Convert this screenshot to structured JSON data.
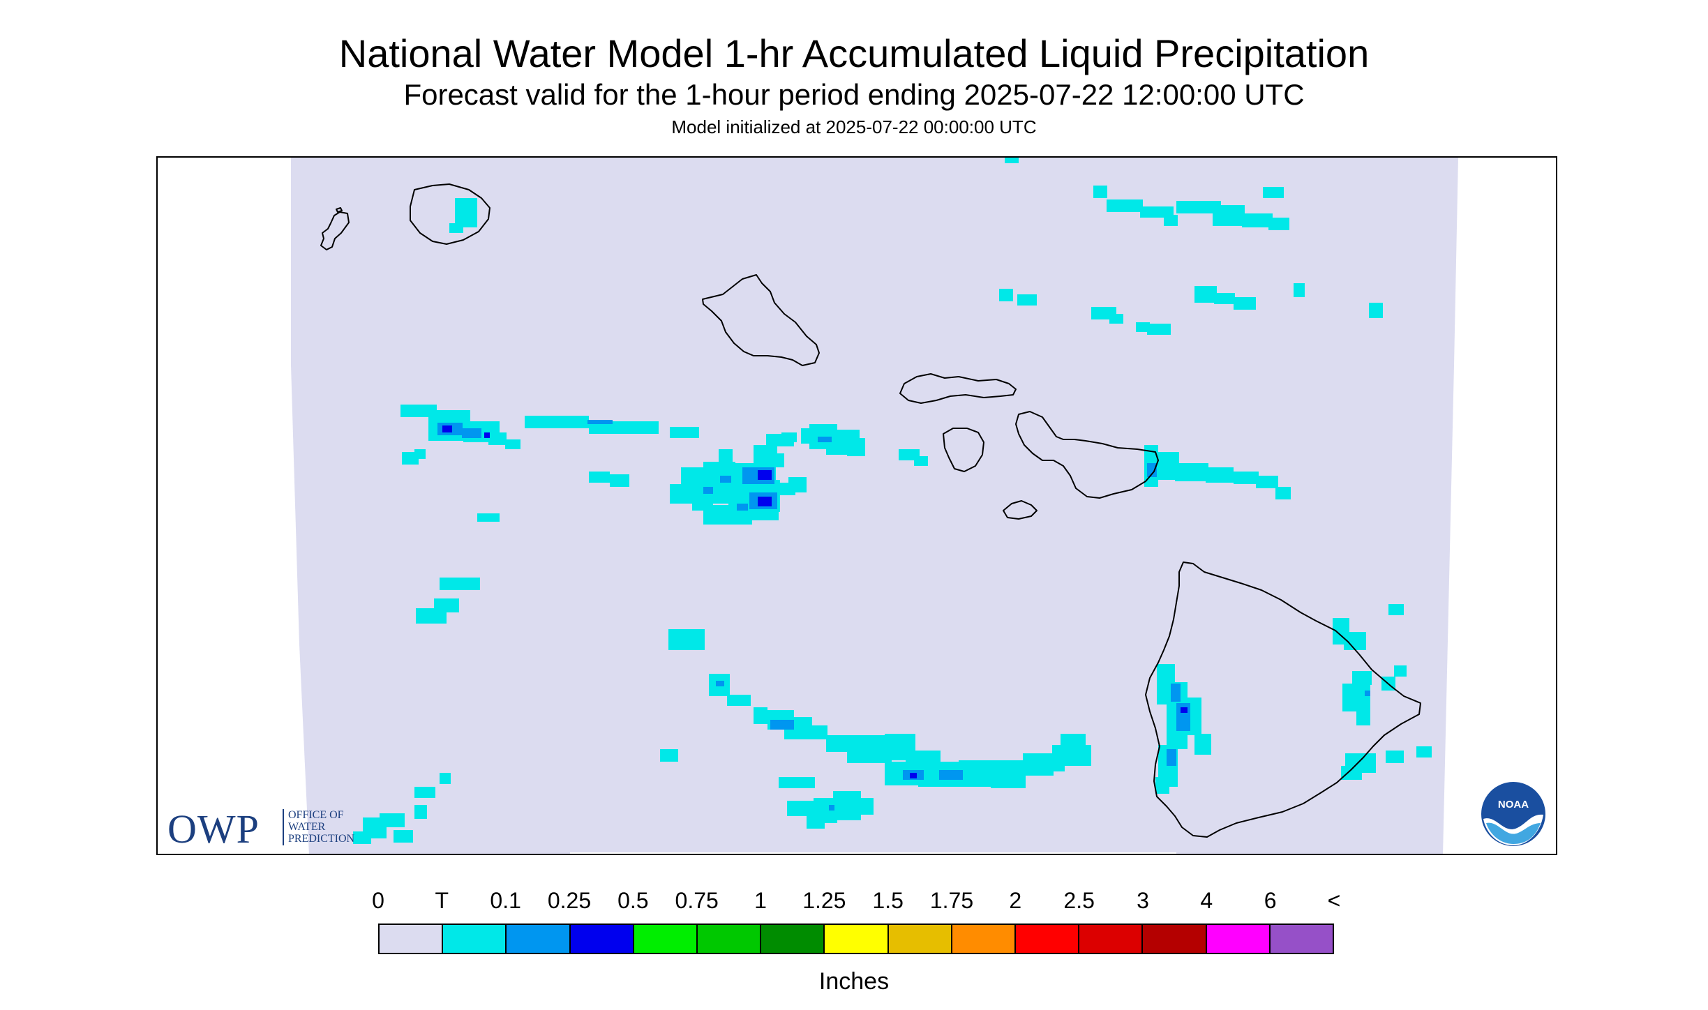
{
  "title": "National Water Model 1-hr Accumulated Liquid Precipitation",
  "subtitle": "Forecast valid for the 1-hour period ending 2025-07-22 12:00:00 UTC",
  "init_line": "Model initialized at 2025-07-22 00:00:00 UTC",
  "legend": {
    "labels": [
      "0",
      "T",
      "0.1",
      "0.25",
      "0.5",
      "0.75",
      "1",
      "1.25",
      "1.5",
      "1.75",
      "2",
      "2.5",
      "3",
      "4",
      "6",
      "<"
    ],
    "colors": [
      "#dcdcf0",
      "#00e8e8",
      "#0096f0",
      "#0000ee",
      "#00ee00",
      "#00c800",
      "#008c00",
      "#ffff00",
      "#e6be00",
      "#ff8c00",
      "#ff0000",
      "#dc0000",
      "#b40000",
      "#ff00ff",
      "#9650c8"
    ],
    "units": "Inches"
  },
  "colors": {
    "map_background": "#dcdcf0",
    "trace": "#00e8e8",
    "light": "#0096f0",
    "moderate": "#0000ee",
    "coastline": "#000000"
  },
  "branding": {
    "owp_abbr": "OWP",
    "owp_line1": "OFFICE OF",
    "owp_line2": "WATER",
    "owp_line3": "PREDICTION",
    "noaa": "NOAA"
  },
  "icons": [
    "owp-logo-icon",
    "noaa-logo-icon"
  ]
}
